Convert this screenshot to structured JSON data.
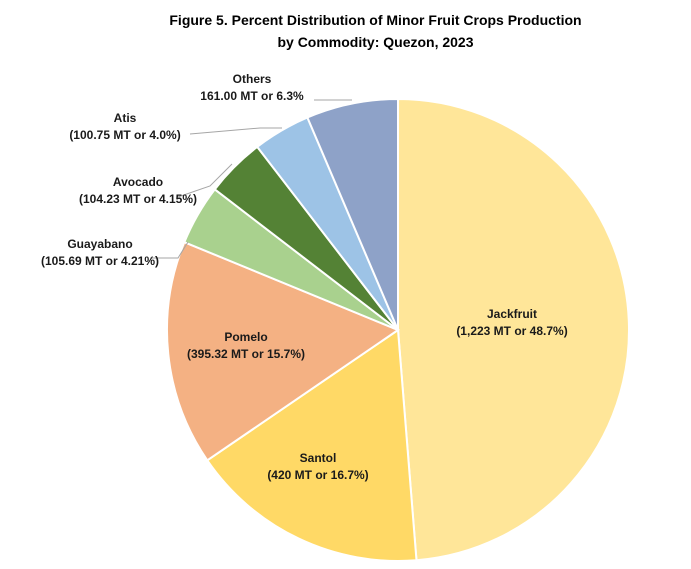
{
  "chart_data": {
    "type": "pie",
    "title_line1": "Figure 5. Percent Distribution of Minor Fruit Crops Production",
    "title_line2": "by Commodity: Quezon, 2023",
    "slices": [
      {
        "name": "Jackfruit",
        "value_label": "(1,223 MT or 48.7%)",
        "value": 1223,
        "percent": 48.7,
        "color": "#FFE699"
      },
      {
        "name": "Santol",
        "value_label": "(420 MT or 16.7%)",
        "value": 420,
        "percent": 16.7,
        "color": "#FFD966"
      },
      {
        "name": "Pomelo",
        "value_label": "(395.32 MT or 15.7%)",
        "value": 395.32,
        "percent": 15.7,
        "color": "#F4B183"
      },
      {
        "name": "Guayabano",
        "value_label": "(105.69 MT or 4.21%)",
        "value": 105.69,
        "percent": 4.21,
        "color": "#A9D18E"
      },
      {
        "name": "Avocado",
        "value_label": "(104.23 MT or 4.15%)",
        "value": 104.23,
        "percent": 4.15,
        "color": "#548235"
      },
      {
        "name": "Atis",
        "value_label": "(100.75 MT or 4.0%)",
        "value": 100.75,
        "percent": 4.0,
        "color": "#9DC3E6"
      },
      {
        "name": "Others",
        "value_label": "161.00 MT or 6.3%",
        "value": 161.0,
        "percent": 6.3,
        "color": "#8EA2C8"
      }
    ]
  }
}
